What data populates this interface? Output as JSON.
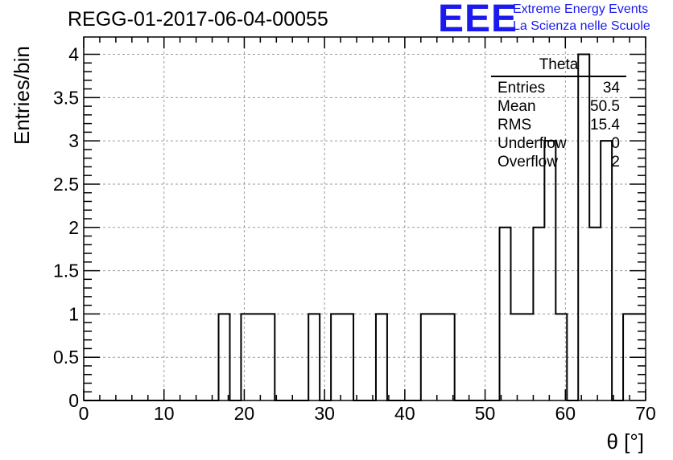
{
  "header": {
    "title": "REGG-01-2017-06-04-00055",
    "logo_text": "EEE",
    "logo_line1": "Extreme Energy Events",
    "logo_line2": "La Scienza nelle Scuole"
  },
  "stats_box": {
    "title": "Theta",
    "rows": [
      {
        "label": "Entries",
        "value": "34"
      },
      {
        "label": "Mean",
        "value": "50.5"
      },
      {
        "label": "RMS",
        "value": "15.4"
      },
      {
        "label": "Underflow",
        "value": "0"
      },
      {
        "label": "Overflow",
        "value": "2"
      }
    ]
  },
  "chart_data": {
    "type": "bar",
    "title": "REGG-01-2017-06-04-00055",
    "xlabel": "θ [°]",
    "ylabel": "Entries/bin",
    "xlim": [
      0,
      70
    ],
    "ylim": [
      0,
      4.2
    ],
    "grid": true,
    "bin_width": 1.4,
    "x_ticks": [
      0,
      10,
      20,
      30,
      40,
      50,
      60,
      70
    ],
    "x_tick_labels": [
      "0",
      "10",
      "20",
      "30",
      "40",
      "50",
      "60",
      "70"
    ],
    "y_ticks": [
      0,
      0.5,
      1,
      1.5,
      2,
      2.5,
      3,
      3.5,
      4
    ],
    "y_tick_labels": [
      "0",
      "0.5",
      "1",
      "1.5",
      "2",
      "2.5",
      "3",
      "3.5",
      "4"
    ],
    "bin_low_edges": [
      0,
      1.4,
      2.8,
      4.2,
      5.6,
      7,
      8.4,
      9.8,
      11.2,
      12.6,
      14,
      15.4,
      16.8,
      18.2,
      19.6,
      21,
      22.4,
      23.8,
      25.2,
      26.6,
      28,
      29.4,
      30.8,
      32.2,
      33.6,
      35,
      36.4,
      37.8,
      39.2,
      40.6,
      42,
      43.4,
      44.8,
      46.2,
      47.6,
      49,
      50.4,
      51.8,
      53.2,
      54.6,
      56,
      57.4,
      58.8,
      60.2,
      61.6,
      63,
      64.4,
      65.8,
      67.2,
      68.6
    ],
    "values": [
      0,
      0,
      0,
      0,
      0,
      0,
      0,
      0,
      0,
      0,
      0,
      0,
      1,
      0,
      1,
      1,
      1,
      0,
      0,
      0,
      1,
      0,
      1,
      1,
      0,
      0,
      1,
      0,
      0,
      0,
      1,
      1,
      1,
      0,
      0,
      0,
      0,
      2,
      1,
      1,
      2,
      3,
      1,
      0,
      4,
      2,
      3,
      0,
      1,
      1
    ]
  },
  "colors": {
    "histogram_line": "#000000",
    "grid": "#9a9a9a",
    "logo": "#1a1aee"
  }
}
